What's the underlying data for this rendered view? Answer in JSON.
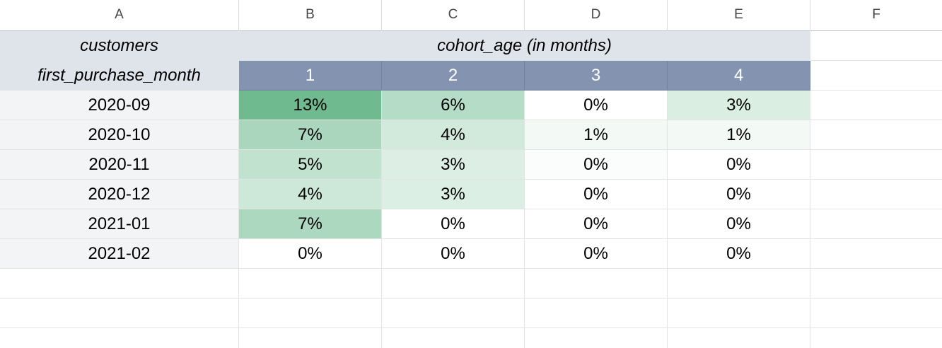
{
  "columns": [
    "A",
    "B",
    "C",
    "D",
    "E",
    "F"
  ],
  "header_row_1": {
    "label": "customers",
    "merged_label": "cohort_age (in months)"
  },
  "header_row_2": {
    "label": "first_purchase_month",
    "ages": [
      "1",
      "2",
      "3",
      "4"
    ]
  },
  "colors": {
    "header_gray": "#dfe3ea",
    "header_blue": "#8494b0",
    "row_label_bg": "#f3f4f6",
    "heat_max": "#6fba8f",
    "heat_min": "#ffffff"
  },
  "table": [
    {
      "month": "2020-09",
      "cells": [
        {
          "text": "13%",
          "value": 13,
          "color": "#70ba90"
        },
        {
          "text": "6%",
          "value": 6,
          "color": "#b5dcc6"
        },
        {
          "text": "0%",
          "value": 0,
          "color": "#ffffff"
        },
        {
          "text": "3%",
          "value": 3,
          "color": "#daeee2"
        }
      ]
    },
    {
      "month": "2020-10",
      "cells": [
        {
          "text": "7%",
          "value": 7,
          "color": "#a9d6bd"
        },
        {
          "text": "4%",
          "value": 4,
          "color": "#d1eadc"
        },
        {
          "text": "1%",
          "value": 1,
          "color": "#f3faf6"
        },
        {
          "text": "1%",
          "value": 1,
          "color": "#f3faf6"
        }
      ]
    },
    {
      "month": "2020-11",
      "cells": [
        {
          "text": "5%",
          "value": 5,
          "color": "#c2e2d0"
        },
        {
          "text": "3%",
          "value": 3,
          "color": "#ddefe5"
        },
        {
          "text": "0%",
          "value": 0,
          "color": "#fbfdfc"
        },
        {
          "text": "0%",
          "value": 0,
          "color": "#ffffff"
        }
      ]
    },
    {
      "month": "2020-12",
      "cells": [
        {
          "text": "4%",
          "value": 4,
          "color": "#cde8d9"
        },
        {
          "text": "3%",
          "value": 3,
          "color": "#dcefe4"
        },
        {
          "text": "0%",
          "value": 0,
          "color": "#ffffff"
        },
        {
          "text": "0%",
          "value": 0,
          "color": "#ffffff"
        }
      ]
    },
    {
      "month": "2021-01",
      "cells": [
        {
          "text": "7%",
          "value": 7,
          "color": "#acd8c0"
        },
        {
          "text": "0%",
          "value": 0,
          "color": "#ffffff"
        },
        {
          "text": "0%",
          "value": 0,
          "color": "#ffffff"
        },
        {
          "text": "0%",
          "value": 0,
          "color": "#ffffff"
        }
      ]
    },
    {
      "month": "2021-02",
      "cells": [
        {
          "text": "0%",
          "value": 0,
          "color": "#ffffff"
        },
        {
          "text": "0%",
          "value": 0,
          "color": "#ffffff"
        },
        {
          "text": "0%",
          "value": 0,
          "color": "#ffffff"
        },
        {
          "text": "0%",
          "value": 0,
          "color": "#ffffff"
        }
      ]
    }
  ]
}
